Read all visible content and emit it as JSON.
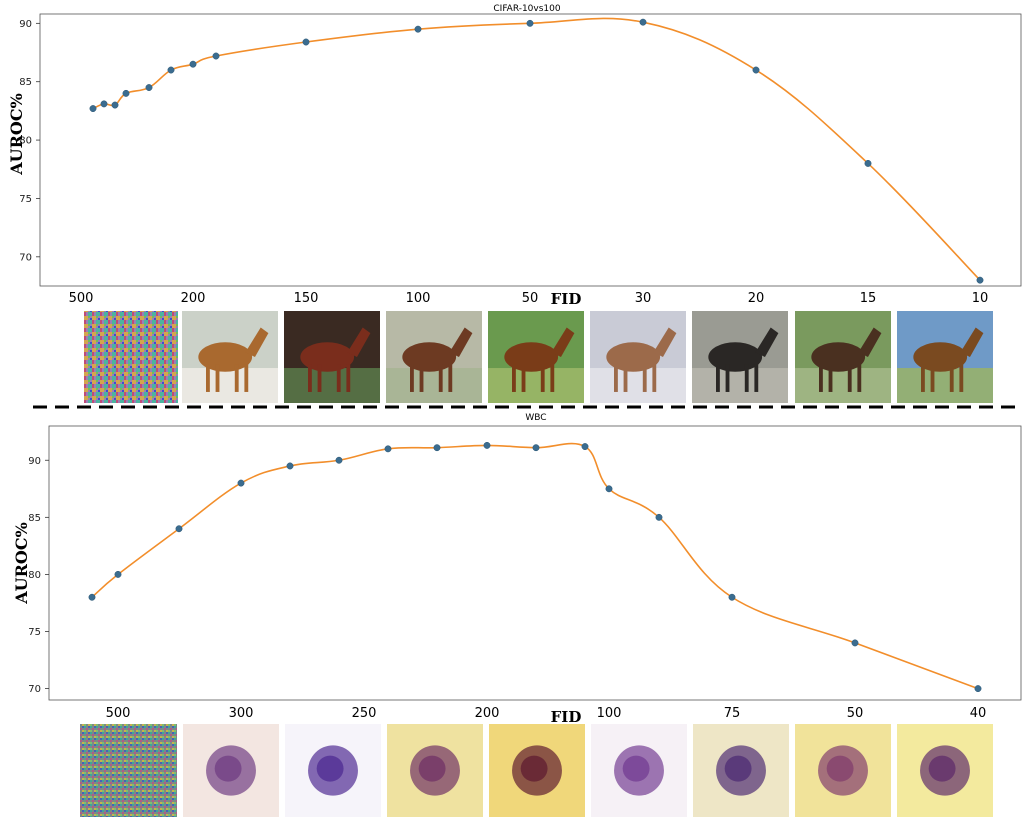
{
  "chart_data": [
    {
      "type": "line",
      "title": "CIFAR-10vs100",
      "xlabel": "FID",
      "ylabel": "AUROC%",
      "ylim": [
        67.5,
        90.8
      ],
      "yticks": [
        70,
        75,
        80,
        85,
        90
      ],
      "x_tick_labels": [
        "500",
        "200",
        "150",
        "100",
        "50",
        "30",
        "20",
        "15",
        "10"
      ],
      "series": [
        {
          "x": [
            "~500",
            "~480",
            "~460",
            "~440",
            "~400",
            "200",
            "~190",
            "~180",
            "150",
            "100",
            "50",
            "30",
            "20",
            "15",
            "10"
          ],
          "values": [
            82.7,
            83.1,
            83.0,
            84.0,
            84.5,
            86.0,
            86.5,
            87.2,
            88.4,
            89.5,
            90.0,
            90.1,
            86.0,
            78.0,
            68.0
          ]
        }
      ],
      "sample_images": [
        "noise",
        "horse",
        "horse",
        "horse",
        "horse",
        "horse",
        "horse",
        "horse",
        "horse"
      ]
    },
    {
      "type": "line",
      "title": "WBC",
      "xlabel": "FID",
      "ylabel": "AUROC%",
      "ylim": [
        69,
        93
      ],
      "yticks": [
        70,
        75,
        80,
        85,
        90
      ],
      "x_tick_labels": [
        "500",
        "300",
        "250",
        "200",
        "100",
        "75",
        "50",
        "40"
      ],
      "series": [
        {
          "x": [
            "~520",
            "500",
            "~400",
            "300",
            "~275",
            "~260",
            "~240",
            "~220",
            "200",
            "~180",
            "~110",
            "100",
            "~90",
            "75",
            "50",
            "40"
          ],
          "values": [
            78.0,
            80.0,
            84.0,
            88.0,
            89.5,
            90.0,
            91.0,
            91.1,
            91.3,
            91.1,
            91.2,
            87.5,
            85.0,
            78.0,
            74.0,
            70.0
          ]
        }
      ],
      "sample_images": [
        "noise",
        "cell",
        "cell",
        "cell",
        "cell",
        "cell",
        "cell",
        "cell",
        "cell"
      ]
    }
  ],
  "colors": {
    "line": "#f28e2b",
    "marker": "#3b6c8f",
    "divider": "#000000"
  }
}
